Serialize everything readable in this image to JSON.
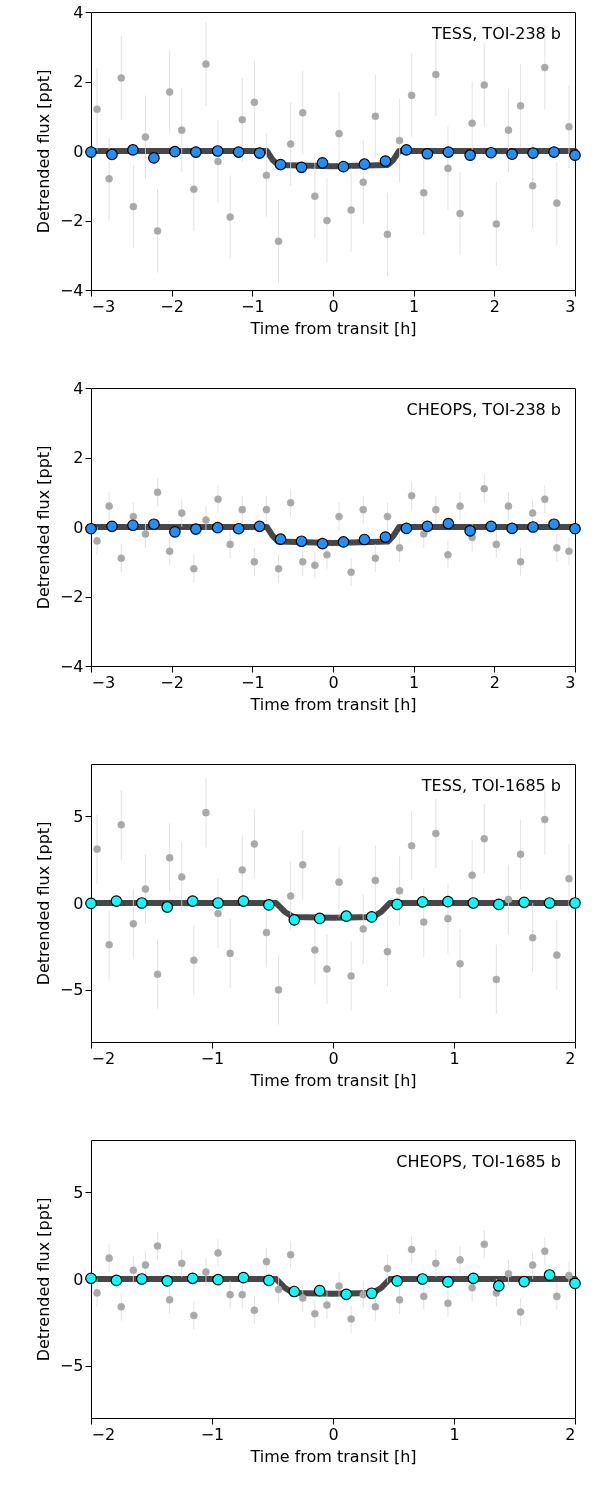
{
  "chart_data": [
    {
      "type": "scatter",
      "xlabel": "Time from transit [h]",
      "ylabel": "Detrended flux [ppt]",
      "annotations": [
        "TESS, TOI-238 b"
      ],
      "xlim": [
        -3,
        3
      ],
      "ylim": [
        -4,
        4
      ],
      "xticks": [
        {
          "value": -3,
          "label": "−3"
        },
        {
          "value": -2,
          "label": "−2"
        },
        {
          "value": -1,
          "label": "−1"
        },
        0,
        1,
        2,
        3
      ],
      "yticks": [
        {
          "value": -4,
          "label": "−4"
        },
        {
          "value": -2,
          "label": "−2"
        },
        0,
        2,
        4
      ],
      "series": [
        {
          "type": "scatter",
          "color": "#a9a9a9",
          "marker": "circle",
          "x": [
            -2.925,
            -2.775,
            -2.625,
            -2.475,
            -2.325,
            -2.175,
            -2.025,
            -1.875,
            -1.725,
            -1.575,
            -1.425,
            -1.275,
            -1.125,
            -0.975,
            -0.825,
            -0.675,
            -0.525,
            -0.375,
            -0.225,
            -0.075,
            0.075,
            0.225,
            0.375,
            0.525,
            0.675,
            0.825,
            0.975,
            1.125,
            1.275,
            1.425,
            1.575,
            1.725,
            1.875,
            2.025,
            2.175,
            2.325,
            2.475,
            2.625,
            2.775,
            2.925
          ],
          "values": [
            1.2,
            -0.8,
            2.1,
            -1.6,
            0.4,
            -2.3,
            1.7,
            0.6,
            -1.1,
            2.5,
            -0.3,
            -1.9,
            0.9,
            1.4,
            -0.7,
            -2.6,
            0.2,
            1.1,
            -1.3,
            -2.0,
            0.5,
            -1.7,
            -0.9,
            1.0,
            -2.4,
            0.3,
            1.6,
            -1.2,
            2.2,
            -0.5,
            -1.8,
            0.8,
            1.9,
            -2.1,
            0.6,
            1.3,
            -1.0,
            2.4,
            -1.5,
            0.7
          ],
          "errors": [
            1.2,
            1.2,
            1.2,
            1.2,
            1.2,
            1.2,
            1.2,
            1.2,
            1.2,
            1.2,
            1.2,
            1.2,
            1.2,
            1.2,
            1.2,
            1.2,
            1.2,
            1.2,
            1.2,
            1.2,
            1.2,
            1.2,
            1.2,
            1.2,
            1.2,
            1.2,
            1.2,
            1.2,
            1.2,
            1.2,
            1.2,
            1.2,
            1.2,
            1.2,
            1.2,
            1.2,
            1.2,
            1.2,
            1.2,
            1.2
          ]
        },
        {
          "type": "line",
          "color": "#333333",
          "x": [
            -3,
            -0.82,
            -0.75,
            -0.68,
            0,
            0.68,
            0.75,
            0.82,
            3
          ],
          "values": [
            0,
            0,
            -0.25,
            -0.4,
            -0.44,
            -0.4,
            -0.25,
            0,
            0
          ]
        },
        {
          "type": "scatter",
          "color": "#1e90ff",
          "marker": "circle",
          "x": [
            -3,
            -2.74,
            -2.48,
            -2.22,
            -1.96,
            -1.7,
            -1.43,
            -1.17,
            -0.91,
            -0.65,
            -0.39,
            -0.13,
            0.13,
            0.39,
            0.65,
            0.91,
            1.17,
            1.43,
            1.7,
            1.96,
            2.22,
            2.48,
            2.74,
            3
          ],
          "values": [
            -0.03,
            -0.1,
            0.03,
            -0.2,
            -0.02,
            -0.03,
            0,
            -0.03,
            -0.06,
            -0.39,
            -0.47,
            -0.34,
            -0.45,
            -0.38,
            -0.29,
            0.03,
            -0.08,
            -0.03,
            -0.12,
            -0.05,
            -0.09,
            -0.06,
            -0.03,
            -0.12
          ]
        }
      ]
    },
    {
      "type": "scatter",
      "xlabel": "Time from transit [h]",
      "ylabel": "Detrended flux [ppt]",
      "annotations": [
        "CHEOPS, TOI-238 b"
      ],
      "xlim": [
        -3,
        3
      ],
      "ylim": [
        -4,
        4
      ],
      "xticks": [
        {
          "value": -3,
          "label": "−3"
        },
        {
          "value": -2,
          "label": "−2"
        },
        {
          "value": -1,
          "label": "−1"
        },
        0,
        1,
        2,
        3
      ],
      "yticks": [
        {
          "value": -4,
          "label": "−4"
        },
        {
          "value": -2,
          "label": "−2"
        },
        0,
        2,
        4
      ],
      "series": [
        {
          "type": "scatter",
          "color": "#a9a9a9",
          "marker": "circle",
          "x": [
            -2.925,
            -2.775,
            -2.625,
            -2.475,
            -2.325,
            -2.175,
            -2.025,
            -1.875,
            -1.725,
            -1.575,
            -1.425,
            -1.275,
            -1.125,
            -0.975,
            -0.825,
            -0.675,
            -0.525,
            -0.375,
            -0.225,
            -0.075,
            0.075,
            0.225,
            0.375,
            0.525,
            0.675,
            0.825,
            0.975,
            1.125,
            1.275,
            1.425,
            1.575,
            1.725,
            1.875,
            2.025,
            2.175,
            2.325,
            2.475,
            2.625,
            2.775,
            2.925
          ],
          "values": [
            -0.4,
            0.6,
            -0.9,
            0.3,
            -0.2,
            1.0,
            -0.7,
            0.4,
            -1.2,
            0.2,
            0.8,
            -0.5,
            0.5,
            -1.0,
            0.5,
            -1.2,
            0.7,
            -1.0,
            -1.1,
            -0.8,
            0.3,
            -1.3,
            0.5,
            -0.9,
            0.3,
            -0.6,
            0.9,
            -0.2,
            0.5,
            -0.8,
            0.6,
            -0.3,
            1.1,
            -0.5,
            0.6,
            -1.0,
            0.4,
            0.8,
            -0.6,
            -0.7
          ],
          "errors": [
            0.4,
            0.4,
            0.4,
            0.4,
            0.4,
            0.4,
            0.4,
            0.4,
            0.4,
            0.4,
            0.4,
            0.4,
            0.4,
            0.4,
            0.4,
            0.4,
            0.4,
            0.4,
            0.4,
            0.4,
            0.4,
            0.4,
            0.4,
            0.4,
            0.4,
            0.4,
            0.4,
            0.4,
            0.4,
            0.4,
            0.4,
            0.4,
            0.4,
            0.4,
            0.4,
            0.4,
            0.4,
            0.4,
            0.4,
            0.4
          ]
        },
        {
          "type": "line",
          "color": "#333333",
          "x": [
            -3,
            -0.82,
            -0.75,
            -0.68,
            0,
            0.68,
            0.75,
            0.82,
            3
          ],
          "values": [
            0,
            0,
            -0.25,
            -0.42,
            -0.46,
            -0.42,
            -0.25,
            0,
            0
          ]
        },
        {
          "type": "scatter",
          "color": "#1e90ff",
          "marker": "circle",
          "x": [
            -3,
            -2.74,
            -2.48,
            -2.22,
            -1.96,
            -1.7,
            -1.43,
            -1.17,
            -0.91,
            -0.65,
            -0.39,
            -0.13,
            0.13,
            0.39,
            0.65,
            0.91,
            1.17,
            1.43,
            1.7,
            1.96,
            2.22,
            2.48,
            2.74,
            3
          ],
          "values": [
            -0.05,
            0.02,
            0.05,
            0.08,
            -0.14,
            -0.06,
            -0.02,
            -0.05,
            0.02,
            -0.35,
            -0.41,
            -0.48,
            -0.43,
            -0.36,
            -0.29,
            -0.04,
            0.02,
            0.1,
            -0.11,
            0.02,
            -0.04,
            0,
            0.08,
            -0.05
          ]
        }
      ]
    },
    {
      "type": "scatter",
      "xlabel": "Time from transit [h]",
      "ylabel": "Detrended flux [ppt]",
      "annotations": [
        "TESS, TOI-1685 b"
      ],
      "xlim": [
        -2,
        2
      ],
      "ylim": [
        -8,
        8
      ],
      "xticks": [
        {
          "value": -2,
          "label": "−2"
        },
        {
          "value": -1,
          "label": "−1"
        },
        0,
        1,
        2
      ],
      "yticks": [
        {
          "value": -5,
          "label": "−5"
        },
        0,
        5
      ],
      "series": [
        {
          "type": "scatter",
          "color": "#a9a9a9",
          "marker": "circle",
          "x": [
            -1.95,
            -1.85,
            -1.75,
            -1.65,
            -1.55,
            -1.45,
            -1.35,
            -1.25,
            -1.15,
            -1.05,
            -0.95,
            -0.85,
            -0.75,
            -0.65,
            -0.55,
            -0.45,
            -0.35,
            -0.25,
            -0.15,
            -0.05,
            0.05,
            0.15,
            0.25,
            0.35,
            0.45,
            0.55,
            0.65,
            0.75,
            0.85,
            0.95,
            1.05,
            1.15,
            1.25,
            1.35,
            1.45,
            1.55,
            1.65,
            1.75,
            1.85,
            1.95
          ],
          "values": [
            3.1,
            -2.4,
            4.5,
            -1.2,
            0.8,
            -4.1,
            2.6,
            1.5,
            -3.3,
            5.2,
            -0.6,
            -2.9,
            1.9,
            3.4,
            -1.7,
            -5.0,
            0.4,
            2.2,
            -2.7,
            -3.8,
            1.2,
            -4.2,
            -1.5,
            1.3,
            -2.8,
            0.7,
            3.3,
            -1.1,
            4.0,
            -0.9,
            -3.5,
            1.6,
            3.7,
            -4.4,
            0.2,
            2.8,
            -2.0,
            4.8,
            -3.0,
            1.4
          ],
          "errors": [
            2,
            2,
            2,
            2,
            2,
            2,
            2,
            2,
            2,
            2,
            2,
            2,
            2,
            2,
            2,
            2,
            2,
            2,
            2,
            2,
            2,
            2,
            2,
            2,
            2,
            2,
            2,
            2,
            2,
            2,
            2,
            2,
            2,
            2,
            2,
            2,
            2,
            2,
            2,
            2
          ]
        },
        {
          "type": "line",
          "color": "#333333",
          "x": [
            -2,
            -0.47,
            -0.4,
            -0.33,
            0,
            0.33,
            0.4,
            0.47,
            2
          ],
          "values": [
            0,
            0,
            -0.5,
            -0.8,
            -0.85,
            -0.8,
            -0.5,
            0,
            0
          ]
        },
        {
          "type": "scatter",
          "color": "#00ffff",
          "marker": "circle",
          "x": [
            -2,
            -1.79,
            -1.58,
            -1.37,
            -1.16,
            -0.95,
            -0.74,
            -0.53,
            -0.32,
            -0.11,
            0.11,
            0.32,
            0.53,
            0.74,
            0.95,
            1.16,
            1.37,
            1.58,
            1.79,
            2
          ],
          "values": [
            -0.02,
            0.11,
            0,
            -0.23,
            0.11,
            0,
            0.11,
            -0.11,
            -0.97,
            -0.89,
            -0.76,
            -0.8,
            -0.08,
            0.06,
            0.08,
            0,
            -0.08,
            0.04,
            0,
            0
          ]
        }
      ]
    },
    {
      "type": "scatter",
      "xlabel": "Time from transit [h]",
      "ylabel": "Detrended flux [ppt]",
      "annotations": [
        "CHEOPS, TOI-1685 b"
      ],
      "xlim": [
        -2,
        2
      ],
      "ylim": [
        -8,
        8
      ],
      "xticks": [
        {
          "value": -2,
          "label": "−2"
        },
        {
          "value": -1,
          "label": "−1"
        },
        0,
        1,
        2
      ],
      "yticks": [
        {
          "value": -5,
          "label": "−5"
        },
        0,
        5
      ],
      "series": [
        {
          "type": "scatter",
          "color": "#a9a9a9",
          "marker": "circle",
          "x": [
            -1.95,
            -1.85,
            -1.75,
            -1.65,
            -1.55,
            -1.45,
            -1.35,
            -1.25,
            -1.15,
            -1.05,
            -0.95,
            -0.85,
            -0.75,
            -0.65,
            -0.55,
            -0.45,
            -0.35,
            -0.25,
            -0.15,
            -0.05,
            0.05,
            0.15,
            0.25,
            0.35,
            0.45,
            0.55,
            0.65,
            0.75,
            0.85,
            0.95,
            1.05,
            1.15,
            1.25,
            1.35,
            1.45,
            1.55,
            1.65,
            1.75,
            1.85,
            1.95
          ],
          "values": [
            -0.8,
            1.2,
            -1.6,
            0.5,
            0.8,
            1.9,
            -1.2,
            0.9,
            -2.1,
            0.4,
            1.5,
            -0.9,
            -0.9,
            -1.8,
            1.0,
            -0.6,
            1.4,
            -1.1,
            -2.0,
            -1.5,
            -0.4,
            -2.3,
            -0.9,
            -1.6,
            0.6,
            -1.2,
            1.7,
            -1.0,
            0.9,
            -1.4,
            1.1,
            -0.5,
            2.0,
            -0.8,
            0.3,
            -1.9,
            0.8,
            1.6,
            -1.0,
            0.2
          ],
          "errors": [
            0.8,
            0.8,
            0.8,
            0.8,
            0.8,
            0.8,
            0.8,
            0.8,
            0.8,
            0.8,
            0.8,
            0.8,
            0.8,
            0.8,
            0.8,
            0.8,
            0.8,
            0.8,
            0.8,
            0.8,
            0.8,
            0.8,
            0.8,
            0.8,
            0.8,
            0.8,
            0.8,
            0.8,
            0.8,
            0.8,
            0.8,
            0.8,
            0.8,
            0.8,
            0.8,
            0.8,
            0.8,
            0.8,
            0.8,
            0.8
          ]
        },
        {
          "type": "line",
          "color": "#333333",
          "x": [
            -2,
            -0.47,
            -0.4,
            -0.33,
            0,
            0.33,
            0.4,
            0.47,
            2
          ],
          "values": [
            0,
            0,
            -0.5,
            -0.8,
            -0.85,
            -0.8,
            -0.5,
            0,
            0
          ]
        },
        {
          "type": "scatter",
          "color": "#00ffff",
          "marker": "circle",
          "x": [
            -2,
            -1.79,
            -1.58,
            -1.37,
            -1.16,
            -0.95,
            -0.74,
            -0.53,
            -0.32,
            -0.11,
            0.11,
            0.32,
            0.53,
            0.74,
            0.95,
            1.16,
            1.37,
            1.58,
            1.79,
            2
          ],
          "values": [
            0.04,
            -0.08,
            0,
            -0.11,
            0.04,
            -0.04,
            0.08,
            -0.08,
            -0.72,
            -0.67,
            -0.88,
            -0.82,
            -0.11,
            0,
            -0.17,
            0.04,
            -0.4,
            -0.15,
            0.23,
            -0.25
          ]
        }
      ]
    }
  ]
}
